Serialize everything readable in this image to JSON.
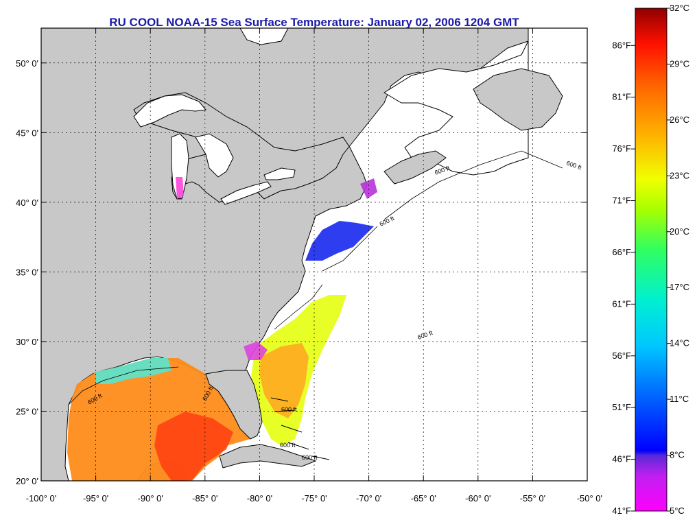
{
  "title": "RU COOL  NOAA-15  Sea Surface Temperature:  January 02, 2006 1204 GMT",
  "map": {
    "lon_range": [
      -100,
      -50
    ],
    "lat_range": [
      20,
      52.5
    ],
    "lat_ticks": [
      {
        "value": 50,
        "label": "50° 0'"
      },
      {
        "value": 45,
        "label": "45° 0'"
      },
      {
        "value": 40,
        "label": "40° 0'"
      },
      {
        "value": 35,
        "label": "35° 0'"
      },
      {
        "value": 30,
        "label": "30° 0'"
      },
      {
        "value": 25,
        "label": "25° 0'"
      },
      {
        "value": 20,
        "label": "20° 0'"
      }
    ],
    "lon_ticks": [
      {
        "value": -100,
        "label": "-100° 0'"
      },
      {
        "value": -95,
        "label": "-95° 0'"
      },
      {
        "value": -90,
        "label": "-90° 0'"
      },
      {
        "value": -85,
        "label": "-85° 0'"
      },
      {
        "value": -80,
        "label": "-80° 0'"
      },
      {
        "value": -75,
        "label": "-75° 0'"
      },
      {
        "value": -70,
        "label": "-70° 0'"
      },
      {
        "value": -65,
        "label": "-65° 0'"
      },
      {
        "value": -60,
        "label": "-60° 0'"
      },
      {
        "value": -55,
        "label": "-55° 0'"
      },
      {
        "value": -50,
        "label": "-50° 0'"
      }
    ],
    "contour_labels": [
      "600 ft",
      "600 ft",
      "600 ft",
      "600 ft",
      "600 ft",
      "600 ft",
      "600 ft",
      "600 ft",
      "600 ft"
    ],
    "colors": {
      "land": "#c8c8c8",
      "ocean": "#ffffff",
      "coast": "#000000",
      "title": "#1a1aaa"
    }
  },
  "colorbar": {
    "celsius_labels": [
      "32°C",
      "29°C",
      "26°C",
      "23°C",
      "20°C",
      "17°C",
      "14°C",
      "11°C",
      "8°C",
      "5°C"
    ],
    "celsius_values": [
      32,
      29,
      26,
      23,
      20,
      17,
      14,
      11,
      8,
      5
    ],
    "fahrenheit_labels": [
      "86°F",
      "81°F",
      "76°F",
      "71°F",
      "66°F",
      "61°F",
      "56°F",
      "51°F",
      "46°F",
      "41°F"
    ],
    "fahrenheit_values": [
      86,
      81,
      76,
      71,
      66,
      61,
      56,
      51,
      46,
      41
    ],
    "range_c": [
      5,
      32
    ],
    "stops": [
      "#ff00ff",
      "#8a2be2",
      "#0000ff",
      "#0080ff",
      "#00e5ff",
      "#00ff80",
      "#9bff00",
      "#ffff00",
      "#ffb000",
      "#ff7000",
      "#ff1a00",
      "#a00000"
    ]
  }
}
